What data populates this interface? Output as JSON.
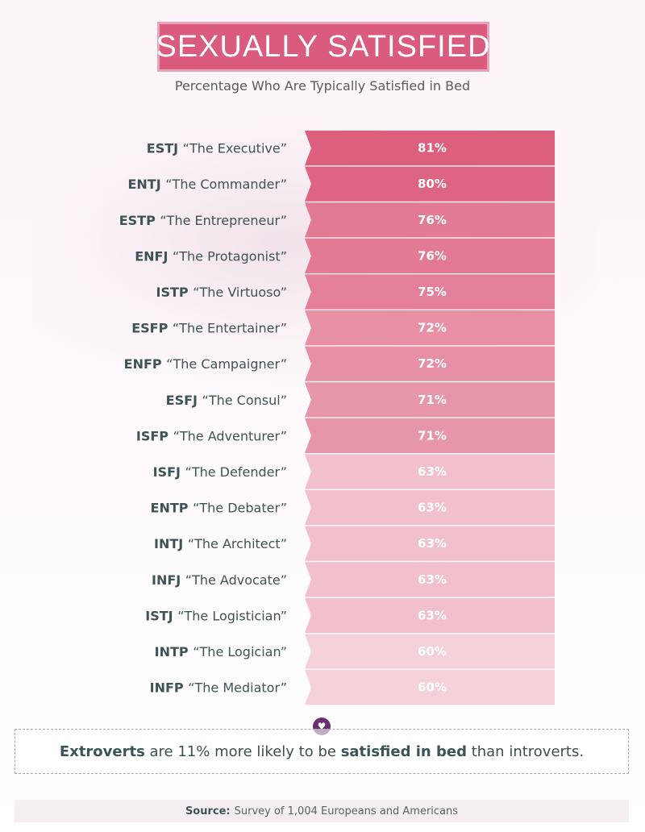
{
  "title": "SEXUALLY SATISFIED",
  "subtitle": "Percentage Who Are Typically Satisfied in Bed",
  "chart_data": {
    "type": "bar",
    "orientation": "horizontal",
    "title": "SEXUALLY SATISFIED",
    "subtitle": "Percentage Who Are Typically Satisfied in Bed",
    "categories": [
      {
        "code": "ESTJ",
        "name": "“The Executive”"
      },
      {
        "code": "ENTJ",
        "name": "“The Commander”"
      },
      {
        "code": "ESTP",
        "name": "“The Entrepreneur”"
      },
      {
        "code": "ENFJ",
        "name": "“The Protagonist”"
      },
      {
        "code": "ISTP",
        "name": "“The Virtuoso”"
      },
      {
        "code": "ESFP",
        "name": "“The Entertainer”"
      },
      {
        "code": "ENFP",
        "name": "“The Campaigner”"
      },
      {
        "code": "ESFJ",
        "name": "“The Consul”"
      },
      {
        "code": "ISFP",
        "name": "“The Adventurer”"
      },
      {
        "code": "ISFJ",
        "name": "“The Defender”"
      },
      {
        "code": "ENTP",
        "name": "“The Debater”"
      },
      {
        "code": "INTJ",
        "name": "“The Architect”"
      },
      {
        "code": "INFJ",
        "name": "“The Advocate”"
      },
      {
        "code": "ISTJ",
        "name": "“The Logistician”"
      },
      {
        "code": "INTP",
        "name": "“The Logician”"
      },
      {
        "code": "INFP",
        "name": "“The Mediator”"
      }
    ],
    "values": [
      81,
      80,
      76,
      76,
      75,
      72,
      72,
      71,
      71,
      63,
      63,
      63,
      63,
      63,
      60,
      60
    ],
    "value_labels": [
      "81%",
      "80%",
      "76%",
      "76%",
      "75%",
      "72%",
      "72%",
      "71%",
      "71%",
      "63%",
      "63%",
      "63%",
      "63%",
      "63%",
      "60%",
      "60%"
    ],
    "unit": "%",
    "colors": {
      "high": "#dc5f7e",
      "low": "#f4d0d9",
      "value_text": "#ffffff",
      "label_text": "#3f5357"
    },
    "legend": "none",
    "grid": false
  },
  "callout": {
    "bold1": "Extroverts",
    "text1": " are 11% more likely to be ",
    "bold2": "satisfied in bed",
    "text2": " than introverts.",
    "icon": "heart-icon"
  },
  "source": {
    "label": "Source:",
    "text": "Survey of 1,004 Europeans and Americans"
  },
  "colors": {
    "title_bg": "#da5b7e",
    "title_border": "#e9a3b8",
    "badge_bg": "#6a2f72"
  }
}
